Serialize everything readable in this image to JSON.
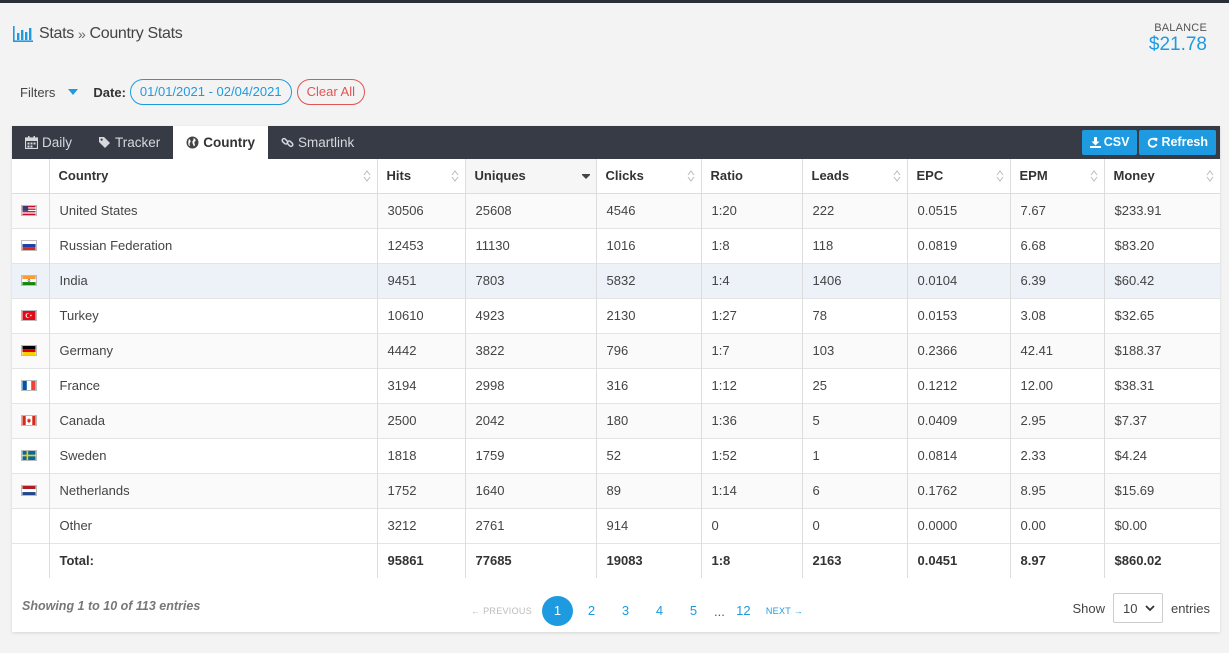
{
  "breadcrumb": {
    "root": "Stats",
    "separator": "»",
    "current": "Country Stats"
  },
  "balance": {
    "label": "BALANCE",
    "value": "$21.78"
  },
  "filters": {
    "label": "Filters",
    "date_label": "Date:",
    "date_range": "01/01/2021 - 02/04/2021",
    "clear_label": "Clear All"
  },
  "tabs": [
    {
      "label": "Daily",
      "icon": "calendar-icon"
    },
    {
      "label": "Tracker",
      "icon": "tag-icon"
    },
    {
      "label": "Country",
      "icon": "globe-icon",
      "active": true
    },
    {
      "label": "Smartlink",
      "icon": "link-icon"
    }
  ],
  "actions": {
    "csv_label": "CSV",
    "refresh_label": "Refresh"
  },
  "table": {
    "headers": [
      "Country",
      "Hits",
      "Uniques",
      "Clicks",
      "Ratio",
      "Leads",
      "EPC",
      "EPM",
      "Money"
    ],
    "rows": [
      {
        "flag": "us",
        "cells": [
          "United States",
          "30506",
          "25608",
          "4546",
          "1:20",
          "222",
          "0.0515",
          "7.67",
          "$233.91"
        ]
      },
      {
        "flag": "ru",
        "cells": [
          "Russian Federation",
          "12453",
          "11130",
          "1016",
          "1:8",
          "118",
          "0.0819",
          "6.68",
          "$83.20"
        ]
      },
      {
        "flag": "in",
        "cells": [
          "India",
          "9451",
          "7803",
          "5832",
          "1:4",
          "1406",
          "0.0104",
          "6.39",
          "$60.42"
        ]
      },
      {
        "flag": "tr",
        "cells": [
          "Turkey",
          "10610",
          "4923",
          "2130",
          "1:27",
          "78",
          "0.0153",
          "3.08",
          "$32.65"
        ]
      },
      {
        "flag": "de",
        "cells": [
          "Germany",
          "4442",
          "3822",
          "796",
          "1:7",
          "103",
          "0.2366",
          "42.41",
          "$188.37"
        ]
      },
      {
        "flag": "fr",
        "cells": [
          "France",
          "3194",
          "2998",
          "316",
          "1:12",
          "25",
          "0.1212",
          "12.00",
          "$38.31"
        ]
      },
      {
        "flag": "ca",
        "cells": [
          "Canada",
          "2500",
          "2042",
          "180",
          "1:36",
          "5",
          "0.0409",
          "2.95",
          "$7.37"
        ]
      },
      {
        "flag": "se",
        "cells": [
          "Sweden",
          "1818",
          "1759",
          "52",
          "1:52",
          "1",
          "0.0814",
          "2.33",
          "$4.24"
        ]
      },
      {
        "flag": "nl",
        "cells": [
          "Netherlands",
          "1752",
          "1640",
          "89",
          "1:14",
          "6",
          "0.1762",
          "8.95",
          "$15.69"
        ]
      },
      {
        "flag": "",
        "cells": [
          "Other",
          "3212",
          "2761",
          "914",
          "0",
          "0",
          "0.0000",
          "0.00",
          "$0.00"
        ]
      }
    ],
    "total": [
      "Total:",
      "95861",
      "77685",
      "19083",
      "1:8",
      "2163",
      "0.0451",
      "8.97",
      "$860.02"
    ]
  },
  "footer": {
    "info": "Showing 1 to 10 of 113 entries",
    "prev_label": "← PREVIOUS",
    "next_label": "NEXT →",
    "pages": [
      "1",
      "2",
      "3",
      "4",
      "5"
    ],
    "ellipsis": "...",
    "last_page": "12",
    "show_label": "Show",
    "page_size": "10",
    "entries_label": "entries"
  },
  "colors": {
    "accent": "#1e9be0",
    "danger": "#e15454",
    "tabbar": "#363b46"
  }
}
